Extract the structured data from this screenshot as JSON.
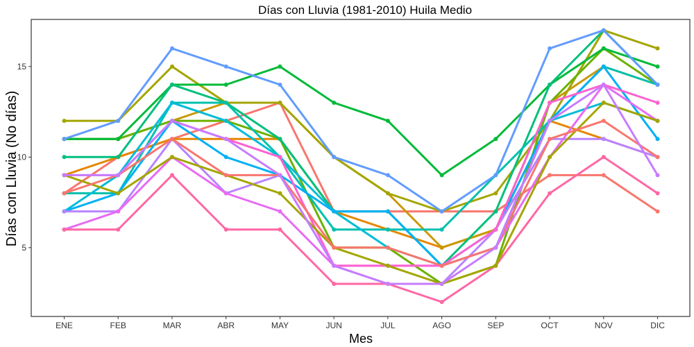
{
  "chart_data": {
    "type": "line",
    "title": "Días con Lluvia (1981-2010)  Huila Medio",
    "xlabel": "Mes",
    "ylabel": "Días con Lluvia (No días)",
    "categories": [
      "ENE",
      "FEB",
      "MAR",
      "ABR",
      "MAY",
      "JUN",
      "JUL",
      "AGO",
      "SEP",
      "OCT",
      "NOV",
      "DIC"
    ],
    "y_ticks": [
      5,
      10,
      15
    ],
    "ylim": [
      1.2,
      17.6
    ],
    "grid": false,
    "legend": "none",
    "series": [
      {
        "color": "#F8766D",
        "values": [
          8,
          10,
          11,
          12,
          13,
          7,
          7,
          7,
          7,
          9,
          9,
          7
        ]
      },
      {
        "color": "#E58700",
        "values": [
          9,
          10,
          11,
          11,
          11,
          7,
          6,
          5,
          6,
          12,
          11,
          10
        ]
      },
      {
        "color": "#C99800",
        "values": [
          11,
          11,
          12,
          13,
          13,
          10,
          8,
          5,
          6,
          13,
          15,
          14
        ]
      },
      {
        "color": "#A3A500",
        "values": [
          12,
          12,
          15,
          13,
          13,
          10,
          8,
          7,
          8,
          12,
          17,
          16
        ]
      },
      {
        "color": "#6BB100",
        "values": [
          11,
          11,
          12,
          12,
          11,
          5,
          5,
          3,
          4,
          13,
          16,
          14
        ]
      },
      {
        "color": "#00BA38",
        "values": [
          11,
          11,
          14,
          14,
          15,
          13,
          12,
          9,
          11,
          14,
          16,
          15
        ]
      },
      {
        "color": "#00BF7D",
        "values": [
          10,
          10,
          14,
          13,
          11,
          7,
          7,
          4,
          7,
          14,
          17,
          14
        ]
      },
      {
        "color": "#00C0AF",
        "values": [
          8,
          8,
          13,
          13,
          10,
          6,
          6,
          6,
          9,
          12,
          15,
          14
        ]
      },
      {
        "color": "#00BCD8",
        "values": [
          7,
          9,
          13,
          12,
          10,
          7,
          5,
          4,
          5,
          12,
          13,
          12
        ]
      },
      {
        "color": "#00B0F6",
        "values": [
          7,
          8,
          12,
          10,
          9,
          7,
          7,
          4,
          6,
          12,
          15,
          11
        ]
      },
      {
        "color": "#619CFF",
        "values": [
          11,
          12,
          16,
          15,
          14,
          10,
          9,
          7,
          9,
          16,
          17,
          14
        ]
      },
      {
        "color": "#B983FF",
        "values": [
          7,
          7,
          11,
          8,
          9,
          4,
          3,
          3,
          6,
          11,
          11,
          10
        ]
      },
      {
        "color": "#E76BF3",
        "values": [
          6,
          7,
          10,
          8,
          7,
          4,
          4,
          4,
          5,
          10,
          14,
          12
        ]
      },
      {
        "color": "#FD61D1",
        "values": [
          9,
          9,
          12,
          11,
          10,
          4,
          4,
          4,
          6,
          13,
          14,
          13
        ]
      },
      {
        "color": "#FF67A4",
        "values": [
          6,
          6,
          9,
          6,
          6,
          3,
          3,
          2,
          4,
          8,
          10,
          8
        ]
      },
      {
        "color": "#A3A500",
        "values": [
          9,
          8,
          10,
          9,
          8,
          5,
          4,
          3,
          4,
          10,
          13,
          12
        ]
      },
      {
        "color": "#F8766D",
        "values": [
          8,
          9,
          11,
          9,
          9,
          5,
          5,
          4,
          5,
          11,
          12,
          10
        ]
      },
      {
        "color": "#C77CFF",
        "values": [
          9,
          9,
          12,
          11,
          9,
          4,
          3,
          3,
          5,
          12,
          14,
          9
        ]
      }
    ]
  }
}
